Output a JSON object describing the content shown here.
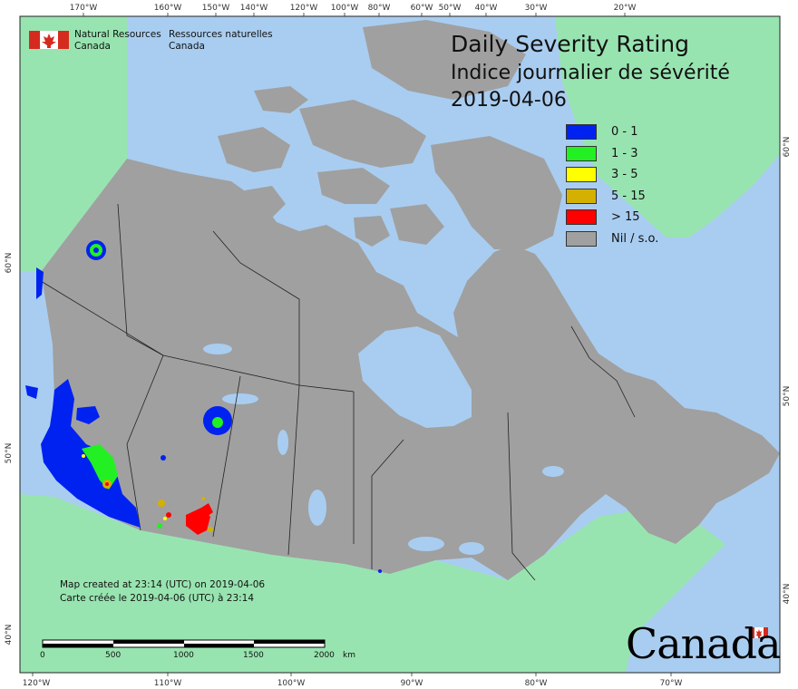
{
  "title": {
    "en": "Daily Severity Rating",
    "fr": "Indice journalier de sévérité",
    "date": "2019-04-06"
  },
  "agency": {
    "en_line1": "Natural Resources",
    "en_line2": "Canada",
    "fr_line1": "Ressources naturelles",
    "fr_line2": "Canada"
  },
  "legend": [
    {
      "label": "0 - 1",
      "color": "#0022f0"
    },
    {
      "label": "1 - 3",
      "color": "#22f022"
    },
    {
      "label": "3 - 5",
      "color": "#ffff00"
    },
    {
      "label": "5 - 15",
      "color": "#d4b000"
    },
    {
      "label": "> 15",
      "color": "#ff0000"
    },
    {
      "label": "Nil / s.o.",
      "color": "#a0a0a0"
    }
  ],
  "notes": {
    "created_en": "Map created at 23:14 (UTC) on 2019-04-06",
    "created_fr": "Carte créée le 2019-04-06 (UTC) à 23:14"
  },
  "scale_bar": {
    "labels": [
      "0",
      "500",
      "1000",
      "1500",
      "2000"
    ],
    "unit": "km"
  },
  "wordmark": "Canada",
  "graticule": {
    "top_labels": [
      "170°W",
      "160°W",
      "150°W",
      "140°W",
      "120°W",
      "100°W",
      "80°W",
      "60°W",
      "50°W",
      "40°W",
      "30°W",
      "20°W"
    ],
    "bottom_labels": [
      "120°W",
      "110°W",
      "100°W",
      "90°W",
      "80°W",
      "70°W"
    ],
    "left_labels": [
      "60°N",
      "50°N",
      "40°N"
    ],
    "right_labels": [
      "60°N",
      "50°N",
      "40°N"
    ]
  },
  "colors": {
    "ocean": "#a9cdf0",
    "land_outside": "#98e4b0",
    "canada_nil": "#a0a0a0"
  }
}
